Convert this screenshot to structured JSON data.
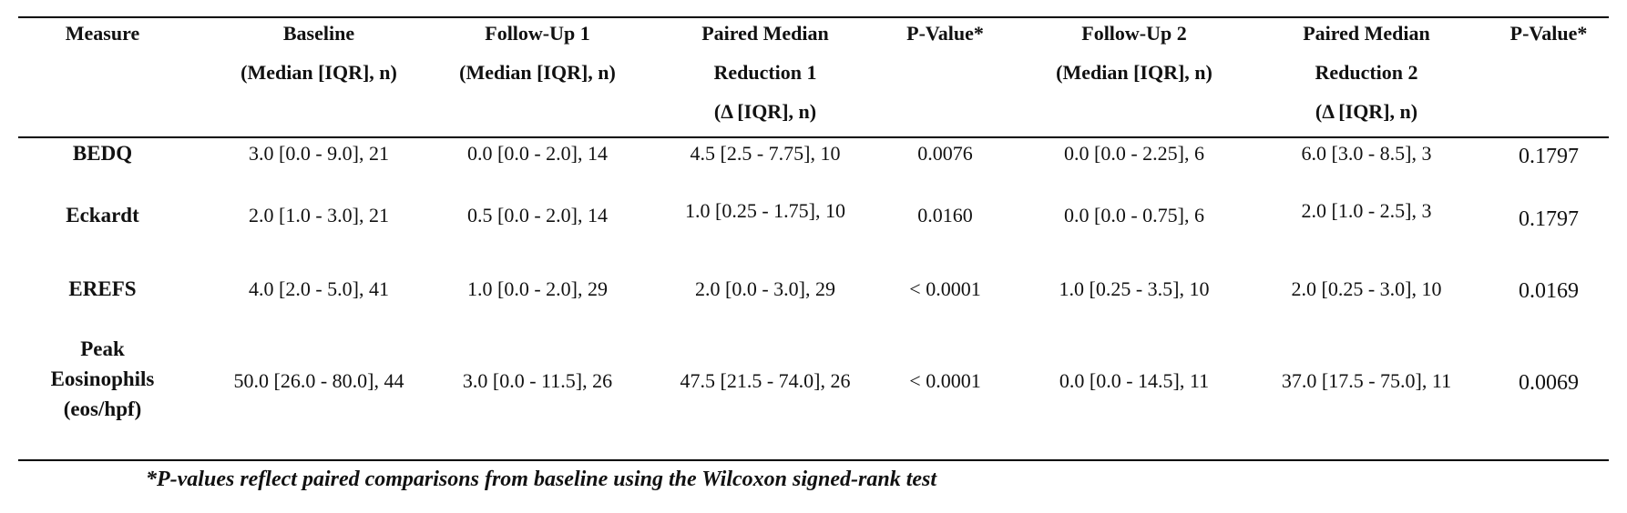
{
  "headers": {
    "measure": [
      "Measure"
    ],
    "baseline": [
      "Baseline",
      "(Median [IQR], n)"
    ],
    "followup1": [
      "Follow-Up 1",
      "(Median [IQR], n)"
    ],
    "reduction1": [
      "Paired Median",
      "Reduction 1",
      "(Δ [IQR], n)"
    ],
    "pvalue1": [
      "P-Value*"
    ],
    "followup2": [
      "Follow-Up 2",
      "(Median [IQR], n)"
    ],
    "reduction2": [
      "Paired Median",
      "Reduction 2",
      "(Δ [IQR], n)"
    ],
    "pvalue2": [
      "P-Value*"
    ]
  },
  "rows": [
    {
      "measure": [
        "BEDQ"
      ],
      "baseline": "3.0 [0.0 - 9.0], 21",
      "followup1": "0.0 [0.0 - 2.0], 14",
      "reduction1": "4.5 [2.5 - 7.75], 10",
      "pvalue1": "0.0076",
      "followup2": "0.0 [0.0 - 2.25], 6",
      "reduction2": "6.0 [3.0 - 8.5], 3",
      "pvalue2": "0.1797"
    },
    {
      "measure": [
        "Eckardt"
      ],
      "baseline": "2.0 [1.0 - 3.0], 21",
      "followup1": "0.5 [0.0 - 2.0], 14",
      "reduction1": "1.0 [0.25 - 1.75], 10",
      "pvalue1": "0.0160",
      "followup2": "0.0 [0.0 - 0.75], 6",
      "reduction2": "2.0 [1.0 - 2.5], 3",
      "pvalue2": "0.1797"
    },
    {
      "measure": [
        "EREFS"
      ],
      "baseline": "4.0 [2.0 - 5.0], 41",
      "followup1": "1.0 [0.0 - 2.0], 29",
      "reduction1": "2.0 [0.0 - 3.0], 29",
      "pvalue1": "< 0.0001",
      "followup2": "1.0 [0.25 - 3.5], 10",
      "reduction2": "2.0 [0.25 - 3.0], 10",
      "pvalue2": "0.0169"
    },
    {
      "measure": [
        "Peak",
        "Eosinophils",
        "(eos/hpf)"
      ],
      "baseline": "50.0 [26.0 - 80.0], 44",
      "followup1": "3.0 [0.0 - 11.5], 26",
      "reduction1": "47.5 [21.5 - 74.0], 26",
      "pvalue1": "< 0.0001",
      "followup2": "0.0 [0.0 - 14.5], 11",
      "reduction2": "37.0 [17.5 - 75.0], 11",
      "pvalue2": "0.0069"
    }
  ],
  "footnote": "*P-values reflect paired comparisons from baseline using the Wilcoxon signed-rank test"
}
